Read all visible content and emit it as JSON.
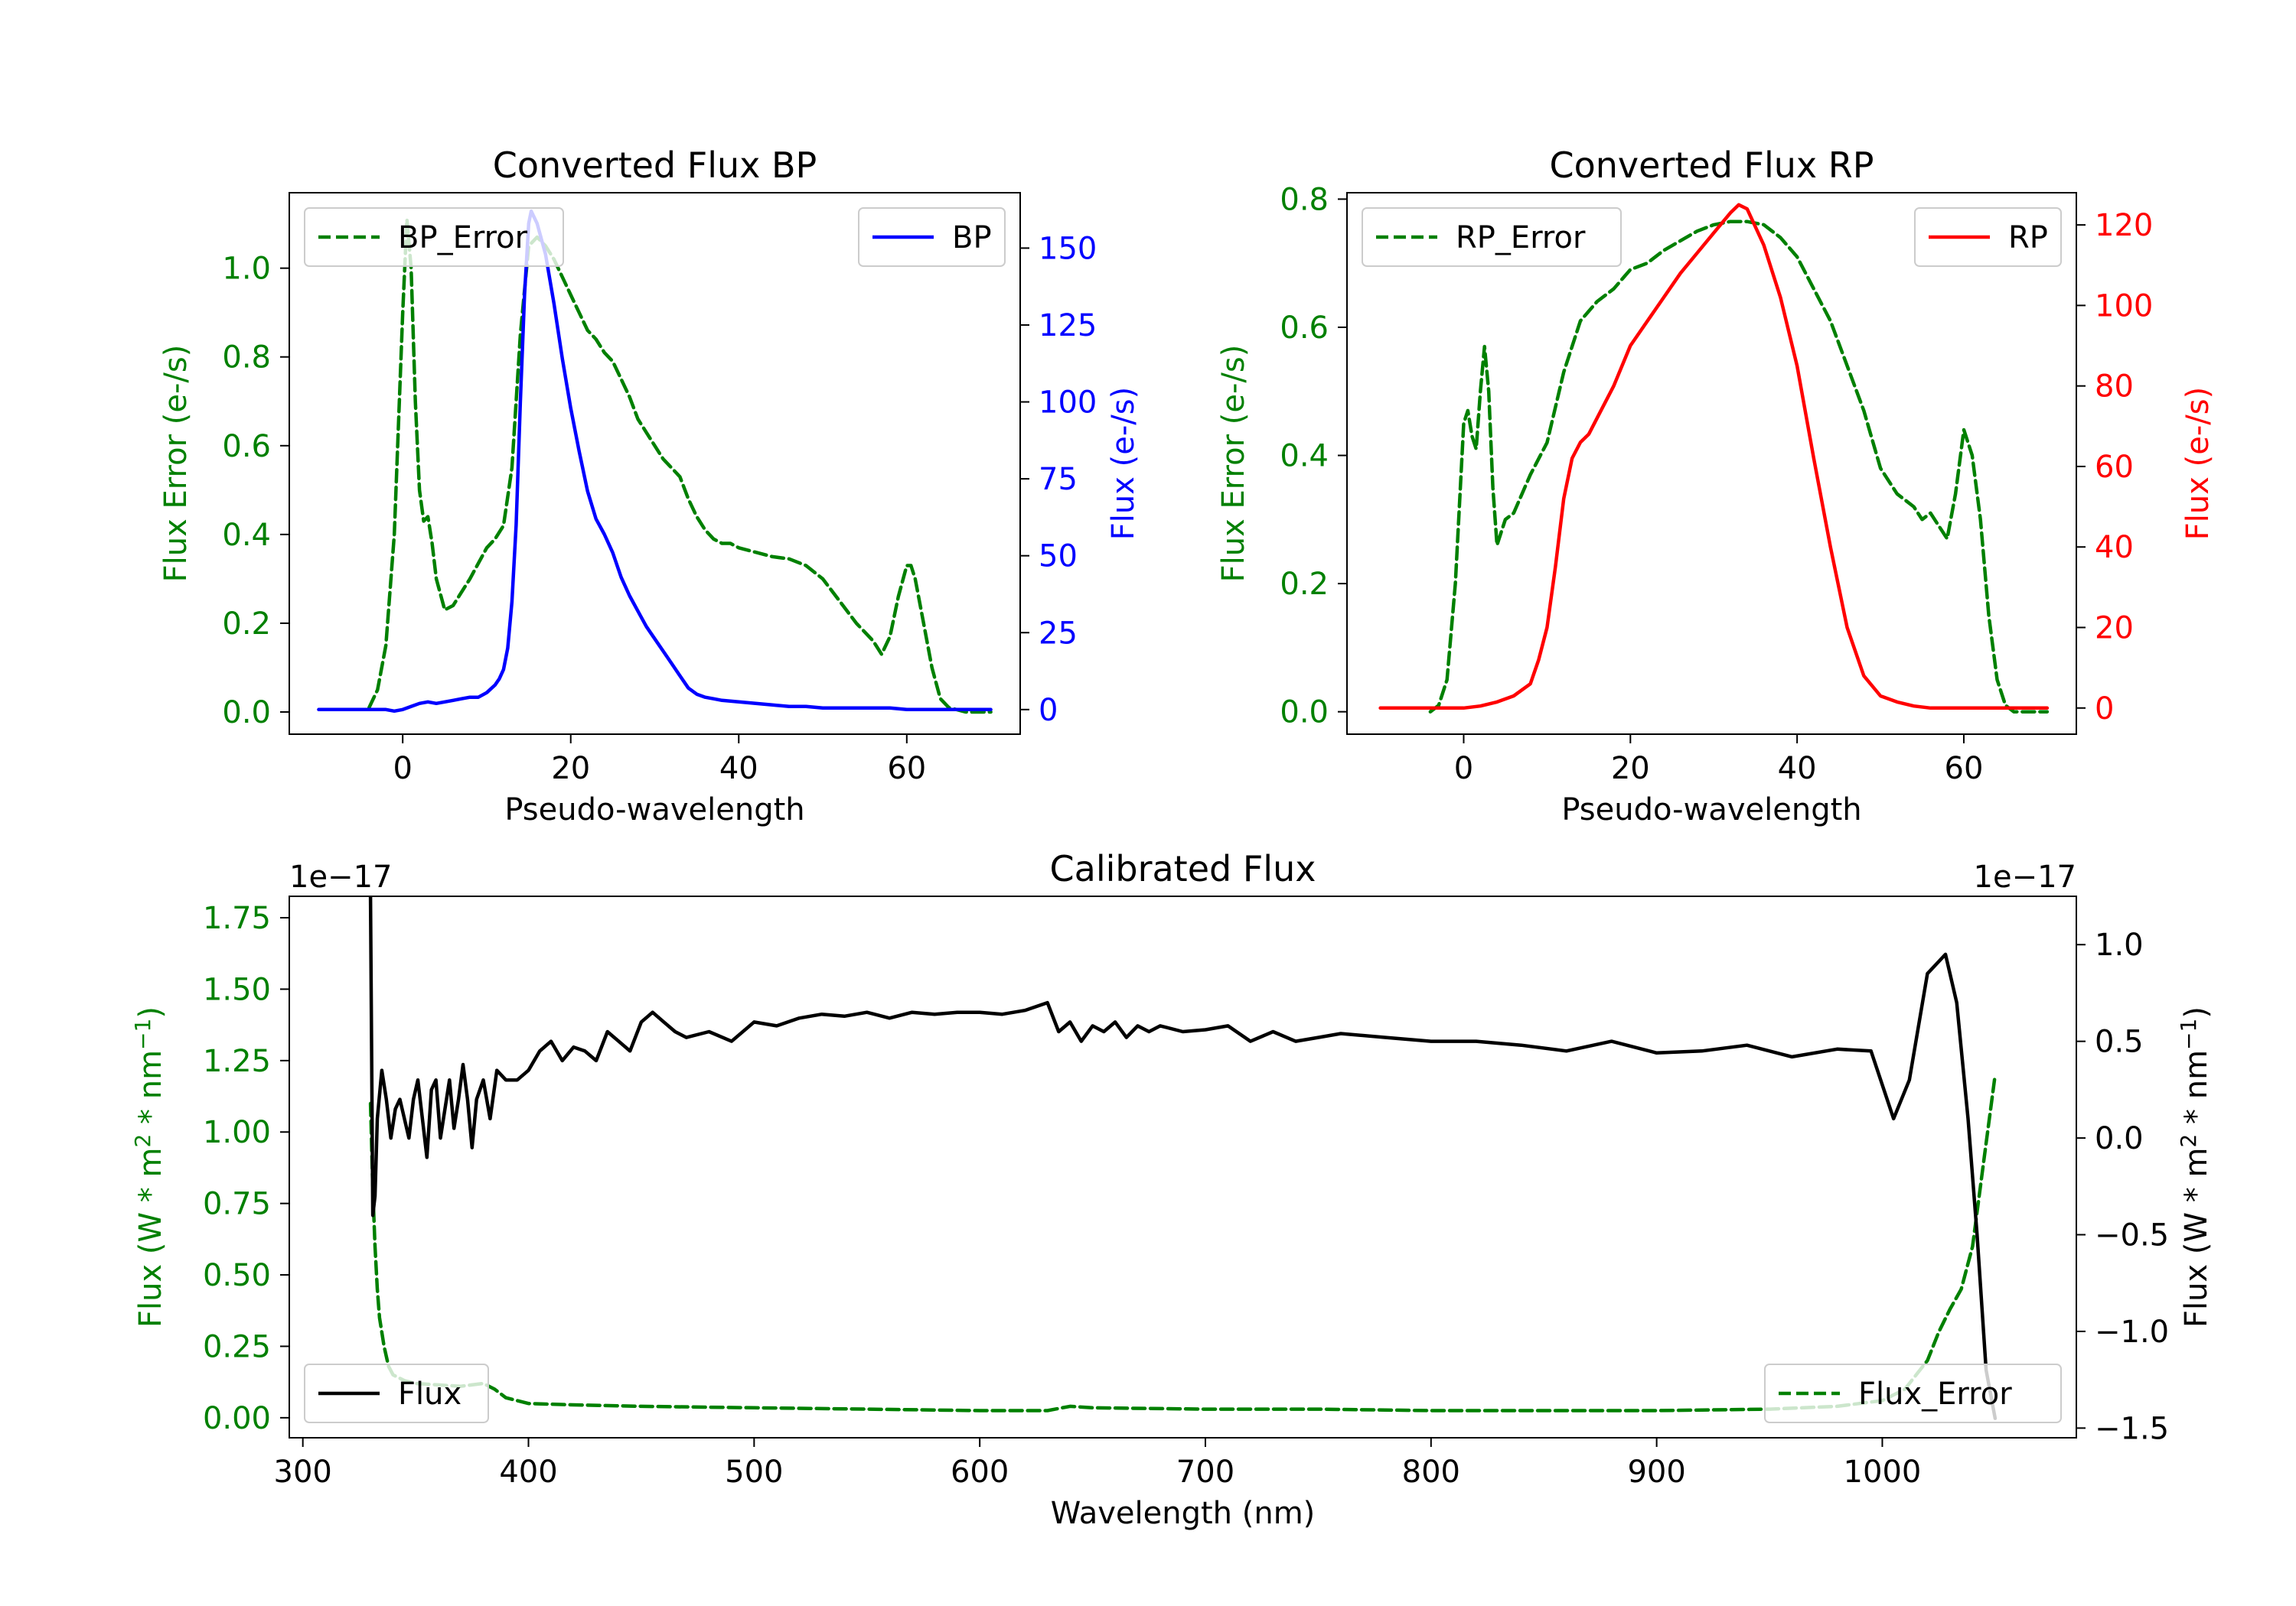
{
  "colors": {
    "green": "#008000",
    "blue": "#0000ff",
    "red": "#ff0000",
    "black": "#000000"
  },
  "chart_data": [
    {
      "id": "bp",
      "type": "line",
      "title": "Converted Flux BP",
      "xlabel": "Pseudo-wavelength",
      "xlim": [
        -13.5,
        73.5
      ],
      "xticks": [
        0,
        20,
        40,
        60
      ],
      "xtick_labels": [
        "0",
        "20",
        "40",
        "60"
      ],
      "left_axis": {
        "label": "Flux Error (e-/s)",
        "color": "#008000",
        "ylim": [
          -0.05,
          1.17
        ],
        "ticks": [
          0.0,
          0.2,
          0.4,
          0.6,
          0.8,
          1.0
        ],
        "tick_labels": [
          "0.0",
          "0.2",
          "0.4",
          "0.6",
          "0.8",
          "1.0"
        ]
      },
      "right_axis": {
        "label": "Flux (e-/s)",
        "color": "#0000ff",
        "ylim": [
          -8,
          168
        ],
        "ticks": [
          0,
          25,
          50,
          75,
          100,
          125,
          150
        ],
        "tick_labels": [
          "0",
          "25",
          "50",
          "75",
          "100",
          "125",
          "150"
        ]
      },
      "series": [
        {
          "name": "BP_Error",
          "axis": "left",
          "color": "#008000",
          "dash": true,
          "x": [
            -4,
            -3,
            -2,
            -1,
            0,
            0.5,
            1,
            1.5,
            2,
            2.5,
            3,
            3.5,
            4,
            5,
            6,
            7,
            8,
            10,
            11,
            12,
            13,
            14,
            15,
            16,
            17,
            18,
            19,
            20,
            21,
            22,
            23,
            24,
            25,
            26,
            27,
            28,
            29,
            30,
            31,
            32,
            33,
            34,
            35,
            36,
            37,
            38,
            39,
            40,
            42,
            44,
            46,
            48,
            50,
            52,
            54,
            56,
            57,
            58,
            59,
            60,
            60.5,
            61,
            62,
            63,
            64,
            65,
            66,
            67,
            68,
            69,
            70
          ],
          "y": [
            0.01,
            0.05,
            0.15,
            0.4,
            0.9,
            1.11,
            1.0,
            0.7,
            0.5,
            0.43,
            0.44,
            0.38,
            0.3,
            0.23,
            0.24,
            0.27,
            0.3,
            0.37,
            0.39,
            0.42,
            0.55,
            0.85,
            1.05,
            1.07,
            1.05,
            1.02,
            0.98,
            0.94,
            0.9,
            0.86,
            0.84,
            0.81,
            0.79,
            0.75,
            0.71,
            0.66,
            0.63,
            0.6,
            0.57,
            0.55,
            0.53,
            0.48,
            0.44,
            0.41,
            0.39,
            0.38,
            0.38,
            0.37,
            0.36,
            0.35,
            0.345,
            0.33,
            0.3,
            0.25,
            0.2,
            0.16,
            0.13,
            0.17,
            0.26,
            0.33,
            0.33,
            0.3,
            0.2,
            0.1,
            0.03,
            0.01,
            0.005,
            0.0,
            0.0,
            0.0,
            0.0
          ]
        },
        {
          "name": "BP",
          "axis": "right",
          "color": "#0000ff",
          "dash": false,
          "x": [
            -10,
            -8,
            -6,
            -4,
            -2,
            -1,
            0,
            1,
            2,
            3,
            4,
            5,
            6,
            7,
            8,
            9,
            10,
            11,
            11.5,
            12,
            12.5,
            13,
            13.5,
            14,
            14.5,
            15,
            15.3,
            16,
            17,
            18,
            19,
            20,
            21,
            22,
            23,
            24,
            25,
            26,
            27,
            28,
            29,
            30,
            31,
            32,
            33,
            34,
            35,
            36,
            37,
            38,
            40,
            42,
            44,
            46,
            48,
            50,
            52,
            54,
            56,
            58,
            60,
            62,
            64,
            66,
            68,
            70
          ],
          "y": [
            0,
            0,
            0,
            0,
            0,
            -0.5,
            0,
            1,
            2,
            2.5,
            2,
            2.5,
            3,
            3.5,
            4,
            4,
            5.5,
            8,
            10,
            13,
            20,
            35,
            60,
            100,
            135,
            158,
            162,
            158,
            148,
            132,
            114,
            98,
            84,
            71,
            62,
            57,
            51,
            43,
            37,
            32,
            27,
            23,
            19,
            15,
            11,
            7,
            5,
            4,
            3.5,
            3,
            2.5,
            2,
            1.5,
            1,
            1,
            0.5,
            0.5,
            0.5,
            0.5,
            0.5,
            0,
            0,
            0,
            0,
            0,
            0
          ]
        }
      ],
      "legend": [
        {
          "label": "BP_Error",
          "position": "top-left"
        },
        {
          "label": "BP",
          "position": "top-right"
        }
      ]
    },
    {
      "id": "rp",
      "type": "line",
      "title": "Converted Flux RP",
      "xlabel": "Pseudo-wavelength",
      "xlim": [
        -14,
        73.5
      ],
      "xticks": [
        0,
        20,
        40,
        60
      ],
      "xtick_labels": [
        "0",
        "20",
        "40",
        "60"
      ],
      "left_axis": {
        "label": "Flux Error (e-/s)",
        "color": "#008000",
        "ylim": [
          -0.035,
          0.81
        ],
        "ticks": [
          0.0,
          0.2,
          0.4,
          0.6,
          0.8
        ],
        "tick_labels": [
          "0.0",
          "0.2",
          "0.4",
          "0.6",
          "0.8"
        ]
      },
      "right_axis": {
        "label": "Flux (e-/s)",
        "color": "#ff0000",
        "ylim": [
          -6.5,
          128
        ],
        "ticks": [
          0,
          20,
          40,
          60,
          80,
          100,
          120
        ],
        "tick_labels": [
          "0",
          "20",
          "40",
          "60",
          "80",
          "100",
          "120"
        ]
      },
      "series": [
        {
          "name": "RP_Error",
          "axis": "left",
          "color": "#008000",
          "dash": true,
          "x": [
            -4,
            -3,
            -2,
            -1,
            0,
            0.5,
            1,
            1.5,
            2,
            2.5,
            3,
            3.5,
            4,
            5,
            6,
            7,
            8,
            10,
            12,
            14,
            16,
            18,
            20,
            22,
            24,
            26,
            28,
            30,
            32,
            34,
            36,
            38,
            40,
            42,
            44,
            46,
            48,
            50,
            52,
            54,
            55,
            56,
            57,
            58,
            59,
            60,
            61,
            62,
            63,
            64,
            65,
            66,
            68,
            70
          ],
          "y": [
            0.0,
            0.01,
            0.05,
            0.2,
            0.45,
            0.47,
            0.43,
            0.41,
            0.5,
            0.57,
            0.5,
            0.35,
            0.26,
            0.3,
            0.31,
            0.34,
            0.37,
            0.42,
            0.53,
            0.61,
            0.64,
            0.66,
            0.69,
            0.7,
            0.72,
            0.735,
            0.75,
            0.76,
            0.765,
            0.765,
            0.76,
            0.74,
            0.71,
            0.66,
            0.61,
            0.54,
            0.47,
            0.38,
            0.34,
            0.32,
            0.3,
            0.31,
            0.29,
            0.27,
            0.34,
            0.44,
            0.4,
            0.3,
            0.15,
            0.05,
            0.01,
            0.0,
            0.0,
            0.0
          ],
          "x_end": 70
        },
        {
          "name": "RP",
          "axis": "right",
          "color": "#ff0000",
          "dash": false,
          "x": [
            -10,
            -6,
            -2,
            0,
            2,
            4,
            6,
            8,
            9,
            10,
            11,
            12,
            13,
            14,
            15,
            16,
            18,
            20,
            22,
            24,
            26,
            28,
            30,
            32,
            33,
            34,
            36,
            38,
            40,
            42,
            44,
            46,
            48,
            50,
            52,
            54,
            56,
            58,
            60,
            62,
            64,
            66,
            70
          ],
          "y": [
            0,
            0,
            0,
            0,
            0.5,
            1.5,
            3,
            6,
            12,
            20,
            35,
            52,
            62,
            66,
            68,
            72,
            80,
            90,
            96,
            102,
            108,
            113,
            118,
            123,
            125,
            124,
            115,
            102,
            85,
            62,
            40,
            20,
            8,
            3,
            1.5,
            0.5,
            0,
            0,
            0,
            0,
            0,
            0,
            0
          ]
        }
      ],
      "legend": [
        {
          "label": "RP_Error",
          "position": "top-left"
        },
        {
          "label": "RP",
          "position": "top-right"
        }
      ]
    },
    {
      "id": "calibrated",
      "type": "line",
      "title": "Calibrated Flux",
      "xlabel": "Wavelength (nm)",
      "xlim": [
        294,
        1086
      ],
      "xticks": [
        300,
        400,
        500,
        600,
        700,
        800,
        900,
        1000
      ],
      "xtick_labels": [
        "300",
        "400",
        "500",
        "600",
        "700",
        "800",
        "900",
        "1000"
      ],
      "left_axis": {
        "label": "Flux (W * m² * nm⁻¹)",
        "label_base": "Flux (W * m",
        "label_mid": " * nm",
        "label_end": ")",
        "sup1": "2",
        "sup2": "−1",
        "offset_text": "1e−17",
        "color": "#008000",
        "ylim": [
          -0.07,
          1.825
        ],
        "ticks": [
          0.0,
          0.25,
          0.5,
          0.75,
          1.0,
          1.25,
          1.5,
          1.75
        ],
        "tick_labels": [
          "0.00",
          "0.25",
          "0.50",
          "0.75",
          "1.00",
          "1.25",
          "1.50",
          "1.75"
        ]
      },
      "right_axis": {
        "label": "Flux (W * m² * nm⁻¹)",
        "label_base": "Flux (W * m",
        "label_mid": " * nm",
        "label_end": ")",
        "sup1": "2",
        "sup2": "−1",
        "offset_text": "1e−17",
        "color": "#000000",
        "ylim": [
          -1.55,
          1.25
        ],
        "ticks": [
          -1.5,
          -1.0,
          -0.5,
          0.0,
          0.5,
          1.0
        ],
        "tick_labels": [
          "−1.5",
          "−1.0",
          "−0.5",
          "0.0",
          "0.5",
          "1.0"
        ]
      },
      "series": [
        {
          "name": "Flux_Error",
          "axis": "left",
          "color": "#008000",
          "dash": true,
          "x": [
            330,
            331,
            332,
            333,
            334,
            336,
            338,
            340,
            345,
            350,
            360,
            370,
            380,
            385,
            390,
            400,
            420,
            450,
            500,
            550,
            600,
            630,
            640,
            650,
            700,
            750,
            800,
            850,
            900,
            950,
            980,
            1000,
            1010,
            1020,
            1025,
            1030,
            1035,
            1040,
            1045,
            1050
          ],
          "y": [
            1.1,
            0.8,
            0.6,
            0.45,
            0.35,
            0.25,
            0.18,
            0.15,
            0.13,
            0.12,
            0.115,
            0.11,
            0.12,
            0.1,
            0.07,
            0.05,
            0.045,
            0.04,
            0.035,
            0.03,
            0.025,
            0.025,
            0.04,
            0.035,
            0.03,
            0.03,
            0.025,
            0.025,
            0.025,
            0.03,
            0.04,
            0.06,
            0.1,
            0.2,
            0.3,
            0.38,
            0.45,
            0.6,
            0.9,
            1.2
          ]
        },
        {
          "name": "Flux",
          "axis": "right",
          "color": "#000000",
          "dash": false,
          "x": [
            330,
            331,
            332,
            333,
            335,
            337,
            339,
            341,
            343,
            345,
            347,
            349,
            351,
            353,
            355,
            357,
            359,
            361,
            363,
            365,
            367,
            369,
            371,
            373,
            375,
            377,
            380,
            383,
            386,
            390,
            395,
            400,
            405,
            410,
            415,
            420,
            425,
            430,
            435,
            440,
            445,
            450,
            455,
            460,
            465,
            470,
            480,
            490,
            500,
            510,
            520,
            530,
            540,
            550,
            560,
            570,
            580,
            590,
            600,
            610,
            620,
            630,
            635,
            640,
            645,
            650,
            655,
            660,
            665,
            670,
            675,
            680,
            690,
            700,
            710,
            720,
            730,
            740,
            750,
            760,
            780,
            800,
            820,
            840,
            860,
            880,
            900,
            920,
            940,
            960,
            980,
            995,
            1005,
            1012,
            1020,
            1028,
            1033,
            1038,
            1042,
            1046,
            1050
          ],
          "y": [
            1.25,
            -0.4,
            -0.3,
            0.1,
            0.35,
            0.2,
            0.0,
            0.15,
            0.2,
            0.1,
            0.0,
            0.2,
            0.3,
            0.1,
            -0.1,
            0.25,
            0.3,
            0.0,
            0.15,
            0.3,
            0.05,
            0.2,
            0.38,
            0.2,
            -0.05,
            0.2,
            0.3,
            0.1,
            0.35,
            0.3,
            0.3,
            0.35,
            0.45,
            0.5,
            0.4,
            0.47,
            0.45,
            0.4,
            0.55,
            0.5,
            0.45,
            0.6,
            0.65,
            0.6,
            0.55,
            0.52,
            0.55,
            0.5,
            0.6,
            0.58,
            0.62,
            0.64,
            0.63,
            0.65,
            0.62,
            0.65,
            0.64,
            0.65,
            0.65,
            0.64,
            0.66,
            0.7,
            0.55,
            0.6,
            0.5,
            0.58,
            0.55,
            0.6,
            0.52,
            0.58,
            0.55,
            0.58,
            0.55,
            0.56,
            0.58,
            0.5,
            0.55,
            0.5,
            0.52,
            0.54,
            0.52,
            0.5,
            0.5,
            0.48,
            0.45,
            0.5,
            0.44,
            0.45,
            0.48,
            0.42,
            0.46,
            0.45,
            0.1,
            0.3,
            0.85,
            0.95,
            0.7,
            0.1,
            -0.5,
            -1.2,
            -1.45
          ]
        }
      ],
      "legend": [
        {
          "label": "Flux",
          "position": "bottom-left"
        },
        {
          "label": "Flux_Error",
          "position": "bottom-right"
        }
      ]
    }
  ]
}
